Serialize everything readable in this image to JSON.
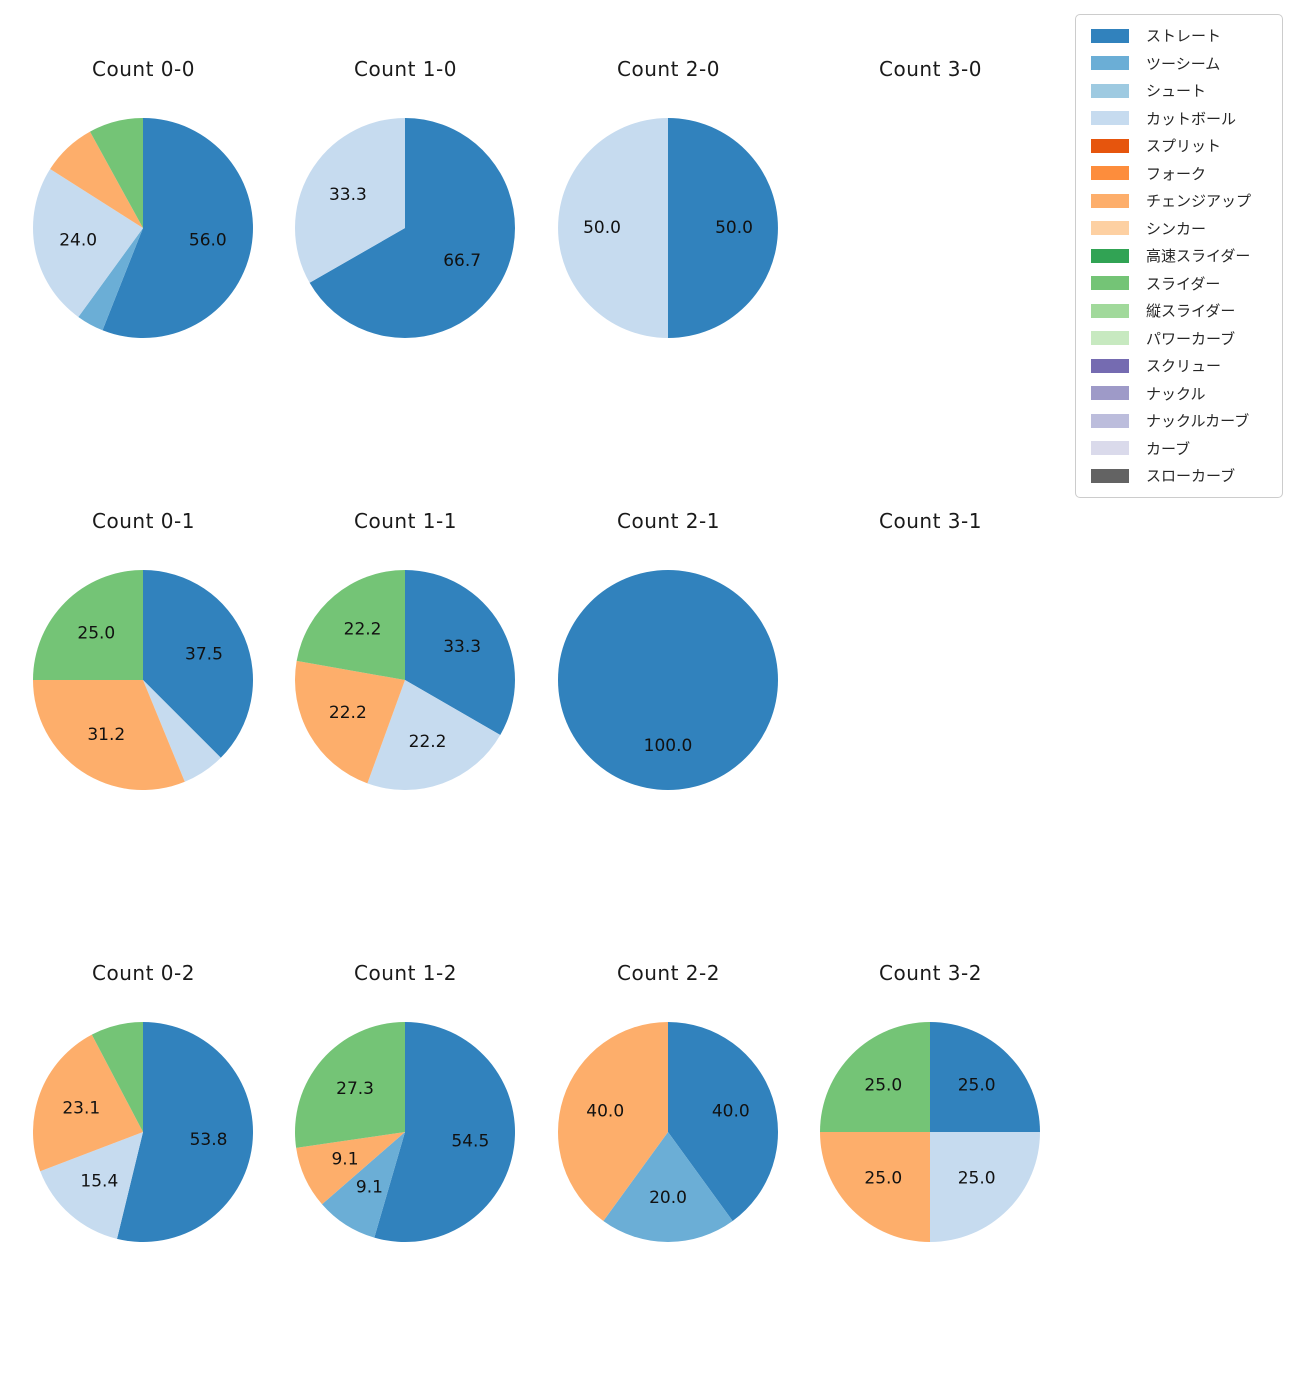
{
  "page": {
    "background": "#ffffff"
  },
  "legend": {
    "position": "top-right",
    "items": [
      {
        "label": "ストレート",
        "color": "#3182bd"
      },
      {
        "label": "ツーシーム",
        "color": "#6baed6"
      },
      {
        "label": "シュート",
        "color": "#9ecae1"
      },
      {
        "label": "カットボール",
        "color": "#c6dbef"
      },
      {
        "label": "スプリット",
        "color": "#e6550d"
      },
      {
        "label": "フォーク",
        "color": "#fd8d3c"
      },
      {
        "label": "チェンジアップ",
        "color": "#fdae6b"
      },
      {
        "label": "シンカー",
        "color": "#fdd0a2"
      },
      {
        "label": "高速スライダー",
        "color": "#31a354"
      },
      {
        "label": "スライダー",
        "color": "#74c476"
      },
      {
        "label": "縦スライダー",
        "color": "#a1d99b"
      },
      {
        "label": "パワーカーブ",
        "color": "#c7e9c0"
      },
      {
        "label": "スクリュー",
        "color": "#756bb1"
      },
      {
        "label": "ナックル",
        "color": "#9e9ac8"
      },
      {
        "label": "ナックルカーブ",
        "color": "#bcbddc"
      },
      {
        "label": "カーブ",
        "color": "#dadaeb"
      },
      {
        "label": "スローカーブ",
        "color": "#636363"
      }
    ]
  },
  "chart_data": {
    "type": "pie",
    "layout": "grid 3 rows x 4 cols; one pie per ball-strike count",
    "start_angle_deg": 90,
    "direction": "clockwise",
    "charts": [
      {
        "title": "Count 0-0",
        "slices": [
          {
            "label": "ストレート",
            "value": 56.0,
            "pct_label": "56.0",
            "color": "#3182bd"
          },
          {
            "label": "ツーシーム",
            "value": 4.0,
            "pct_label": "",
            "color": "#6baed6"
          },
          {
            "label": "カットボール",
            "value": 24.0,
            "pct_label": "24.0",
            "color": "#c6dbef"
          },
          {
            "label": "チェンジアップ",
            "value": 8.0,
            "pct_label": "",
            "color": "#fdae6b"
          },
          {
            "label": "スライダー",
            "value": 8.0,
            "pct_label": "",
            "color": "#74c476"
          }
        ]
      },
      {
        "title": "Count 1-0",
        "slices": [
          {
            "label": "ストレート",
            "value": 66.7,
            "pct_label": "66.7",
            "color": "#3182bd"
          },
          {
            "label": "カットボール",
            "value": 33.3,
            "pct_label": "33.3",
            "color": "#c6dbef"
          }
        ]
      },
      {
        "title": "Count 2-0",
        "slices": [
          {
            "label": "ストレート",
            "value": 50.0,
            "pct_label": "50.0",
            "color": "#3182bd"
          },
          {
            "label": "カットボール",
            "value": 50.0,
            "pct_label": "50.0",
            "color": "#c6dbef"
          }
        ]
      },
      {
        "title": "Count 3-0",
        "slices": []
      },
      {
        "title": "Count 0-1",
        "slices": [
          {
            "label": "ストレート",
            "value": 37.5,
            "pct_label": "37.5",
            "color": "#3182bd"
          },
          {
            "label": "カットボール",
            "value": 6.3,
            "pct_label": "",
            "color": "#c6dbef"
          },
          {
            "label": "チェンジアップ",
            "value": 31.2,
            "pct_label": "31.2",
            "color": "#fdae6b"
          },
          {
            "label": "スライダー",
            "value": 25.0,
            "pct_label": "25.0",
            "color": "#74c476"
          }
        ]
      },
      {
        "title": "Count 1-1",
        "slices": [
          {
            "label": "ストレート",
            "value": 33.3,
            "pct_label": "33.3",
            "color": "#3182bd"
          },
          {
            "label": "カットボール",
            "value": 22.2,
            "pct_label": "22.2",
            "color": "#c6dbef"
          },
          {
            "label": "チェンジアップ",
            "value": 22.2,
            "pct_label": "22.2",
            "color": "#fdae6b"
          },
          {
            "label": "スライダー",
            "value": 22.2,
            "pct_label": "22.2",
            "color": "#74c476"
          }
        ]
      },
      {
        "title": "Count 2-1",
        "slices": [
          {
            "label": "ストレート",
            "value": 100.0,
            "pct_label": "100.0",
            "color": "#3182bd"
          }
        ]
      },
      {
        "title": "Count 3-1",
        "slices": []
      },
      {
        "title": "Count 0-2",
        "slices": [
          {
            "label": "ストレート",
            "value": 53.8,
            "pct_label": "53.8",
            "color": "#3182bd"
          },
          {
            "label": "カットボール",
            "value": 15.4,
            "pct_label": "15.4",
            "color": "#c6dbef"
          },
          {
            "label": "チェンジアップ",
            "value": 23.1,
            "pct_label": "23.1",
            "color": "#fdae6b"
          },
          {
            "label": "スライダー",
            "value": 7.7,
            "pct_label": "",
            "color": "#74c476"
          }
        ]
      },
      {
        "title": "Count 1-2",
        "slices": [
          {
            "label": "ストレート",
            "value": 54.5,
            "pct_label": "54.5",
            "color": "#3182bd"
          },
          {
            "label": "ツーシーム",
            "value": 9.1,
            "pct_label": "9.1",
            "color": "#6baed6"
          },
          {
            "label": "チェンジアップ",
            "value": 9.1,
            "pct_label": "9.1",
            "color": "#fdae6b"
          },
          {
            "label": "スライダー",
            "value": 27.3,
            "pct_label": "27.3",
            "color": "#74c476"
          }
        ]
      },
      {
        "title": "Count 2-2",
        "slices": [
          {
            "label": "ストレート",
            "value": 40.0,
            "pct_label": "40.0",
            "color": "#3182bd"
          },
          {
            "label": "ツーシーム",
            "value": 20.0,
            "pct_label": "20.0",
            "color": "#6baed6"
          },
          {
            "label": "チェンジアップ",
            "value": 40.0,
            "pct_label": "40.0",
            "color": "#fdae6b"
          }
        ]
      },
      {
        "title": "Count 3-2",
        "slices": [
          {
            "label": "ストレート",
            "value": 25.0,
            "pct_label": "25.0",
            "color": "#3182bd"
          },
          {
            "label": "カットボール",
            "value": 25.0,
            "pct_label": "25.0",
            "color": "#c6dbef"
          },
          {
            "label": "チェンジアップ",
            "value": 25.0,
            "pct_label": "25.0",
            "color": "#fdae6b"
          },
          {
            "label": "スライダー",
            "value": 25.0,
            "pct_label": "25.0",
            "color": "#74c476"
          }
        ]
      }
    ]
  }
}
